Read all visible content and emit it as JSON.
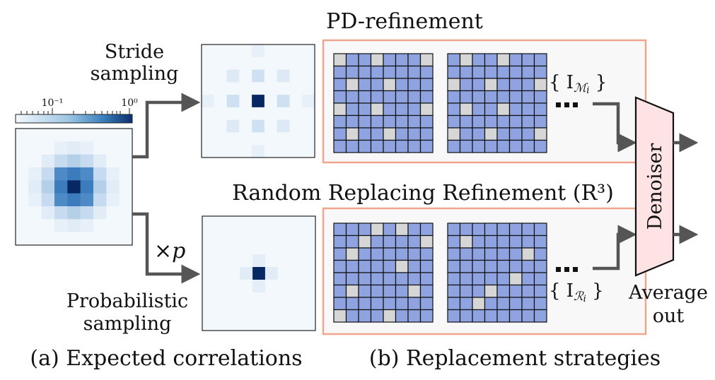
{
  "labels": {
    "stride_line1": "Stride",
    "stride_line2": "sampling",
    "probabilistic_line1": "Probabilistic",
    "probabilistic_line2": "sampling",
    "times_p": "×p",
    "pd_title": "PD-refinement",
    "r3_title": "Random Replacing Refinement (R³)",
    "set_m": "{ I_Mi }",
    "set_r": "{ I_Ri }",
    "denoiser": "Denoiser",
    "average_line1": "Average",
    "average_line2": "out",
    "caption_a": "(a) Expected correlations",
    "caption_b": "(b) Replacement strategies"
  },
  "colorbar": {
    "tick_min": "10⁻¹",
    "tick_max": "10⁰"
  },
  "colors": {
    "cell_blue": "#8ea3e0",
    "cell_gray": "#d6d6d6",
    "panel_border": "#f0a58c",
    "denoiser_fill": "#fde3e3",
    "arrow": "#555555"
  },
  "heatmaps": {
    "correlation": [
      [
        0,
        0,
        0,
        0,
        0,
        0,
        0,
        0,
        0
      ],
      [
        0,
        0,
        0,
        0.08,
        0.12,
        0.08,
        0,
        0,
        0
      ],
      [
        0,
        0,
        0.12,
        0.3,
        0.35,
        0.3,
        0.12,
        0,
        0
      ],
      [
        0,
        0.08,
        0.3,
        0.65,
        0.72,
        0.65,
        0.3,
        0.08,
        0
      ],
      [
        0,
        0.12,
        0.35,
        0.72,
        1.0,
        0.72,
        0.35,
        0.12,
        0
      ],
      [
        0,
        0.08,
        0.3,
        0.65,
        0.72,
        0.65,
        0.3,
        0.08,
        0
      ],
      [
        0,
        0,
        0.12,
        0.3,
        0.35,
        0.3,
        0.12,
        0,
        0
      ],
      [
        0,
        0,
        0,
        0.08,
        0.12,
        0.08,
        0,
        0,
        0
      ],
      [
        0,
        0,
        0,
        0,
        0,
        0,
        0,
        0,
        0
      ]
    ],
    "stride": [
      [
        0,
        0,
        0,
        0,
        0.08,
        0,
        0,
        0,
        0
      ],
      [
        0,
        0,
        0,
        0,
        0,
        0,
        0,
        0,
        0
      ],
      [
        0,
        0,
        0.15,
        0,
        0.25,
        0,
        0.15,
        0,
        0
      ],
      [
        0,
        0,
        0,
        0,
        0,
        0,
        0,
        0,
        0
      ],
      [
        0.08,
        0,
        0.25,
        0,
        1.0,
        0,
        0.25,
        0,
        0.08
      ],
      [
        0,
        0,
        0,
        0,
        0,
        0,
        0,
        0,
        0
      ],
      [
        0,
        0,
        0.15,
        0,
        0.25,
        0,
        0.15,
        0,
        0
      ],
      [
        0,
        0,
        0,
        0,
        0,
        0,
        0,
        0,
        0
      ],
      [
        0,
        0,
        0,
        0,
        0.08,
        0,
        0,
        0,
        0
      ]
    ],
    "probabilistic": [
      [
        0,
        0,
        0,
        0,
        0,
        0,
        0,
        0,
        0
      ],
      [
        0,
        0,
        0,
        0,
        0,
        0,
        0,
        0,
        0
      ],
      [
        0,
        0,
        0,
        0,
        0,
        0,
        0,
        0,
        0
      ],
      [
        0,
        0,
        0,
        0,
        0.1,
        0,
        0,
        0,
        0
      ],
      [
        0,
        0,
        0,
        0.12,
        1.0,
        0.12,
        0,
        0,
        0
      ],
      [
        0,
        0,
        0,
        0,
        0.1,
        0,
        0,
        0,
        0
      ],
      [
        0,
        0,
        0,
        0,
        0,
        0,
        0,
        0,
        0
      ],
      [
        0,
        0,
        0,
        0,
        0,
        0,
        0,
        0,
        0
      ],
      [
        0,
        0,
        0,
        0,
        0,
        0,
        0,
        0,
        0
      ]
    ]
  },
  "grids": {
    "pd_1": [
      [
        1,
        0,
        0,
        1,
        0,
        0,
        0,
        1
      ],
      [
        0,
        0,
        0,
        0,
        0,
        0,
        0,
        0
      ],
      [
        0,
        1,
        0,
        0,
        1,
        0,
        0,
        0
      ],
      [
        0,
        0,
        0,
        0,
        0,
        0,
        0,
        0
      ],
      [
        1,
        0,
        0,
        1,
        0,
        0,
        0,
        1
      ],
      [
        0,
        0,
        0,
        0,
        0,
        0,
        0,
        0
      ],
      [
        0,
        1,
        0,
        0,
        1,
        0,
        0,
        0
      ],
      [
        0,
        0,
        0,
        0,
        0,
        0,
        0,
        0
      ]
    ],
    "pd_2": [
      [
        0,
        1,
        0,
        0,
        1,
        0,
        0,
        0
      ],
      [
        0,
        0,
        0,
        0,
        0,
        0,
        0,
        0
      ],
      [
        1,
        0,
        0,
        1,
        0,
        0,
        0,
        1
      ],
      [
        0,
        0,
        0,
        0,
        0,
        0,
        0,
        0
      ],
      [
        0,
        1,
        0,
        0,
        1,
        0,
        0,
        0
      ],
      [
        0,
        0,
        0,
        0,
        0,
        0,
        0,
        0
      ],
      [
        1,
        0,
        0,
        1,
        0,
        0,
        0,
        1
      ],
      [
        0,
        0,
        0,
        0,
        0,
        0,
        0,
        0
      ]
    ],
    "r3_1": [
      [
        0,
        0,
        0,
        1,
        0,
        1,
        0,
        0
      ],
      [
        0,
        0,
        1,
        0,
        0,
        0,
        0,
        1
      ],
      [
        0,
        1,
        0,
        0,
        0,
        0,
        0,
        0
      ],
      [
        0,
        0,
        0,
        0,
        0,
        1,
        0,
        0
      ],
      [
        0,
        0,
        0,
        0,
        0,
        0,
        0,
        0
      ],
      [
        0,
        1,
        0,
        0,
        0,
        0,
        1,
        0
      ],
      [
        0,
        0,
        0,
        0,
        0,
        0,
        0,
        0
      ],
      [
        1,
        0,
        0,
        0,
        1,
        0,
        0,
        0
      ]
    ],
    "r3_2": [
      [
        0,
        0,
        0,
        0,
        0,
        0,
        0,
        0
      ],
      [
        0,
        1,
        0,
        0,
        0,
        0,
        0,
        0
      ],
      [
        0,
        0,
        0,
        0,
        0,
        0,
        1,
        0
      ],
      [
        0,
        0,
        0,
        0,
        0,
        0,
        0,
        0
      ],
      [
        0,
        0,
        0,
        0,
        0,
        1,
        0,
        0
      ],
      [
        0,
        0,
        0,
        1,
        0,
        0,
        0,
        0
      ],
      [
        0,
        0,
        1,
        0,
        0,
        0,
        0,
        0
      ],
      [
        0,
        0,
        0,
        0,
        0,
        0,
        0,
        0
      ]
    ]
  }
}
